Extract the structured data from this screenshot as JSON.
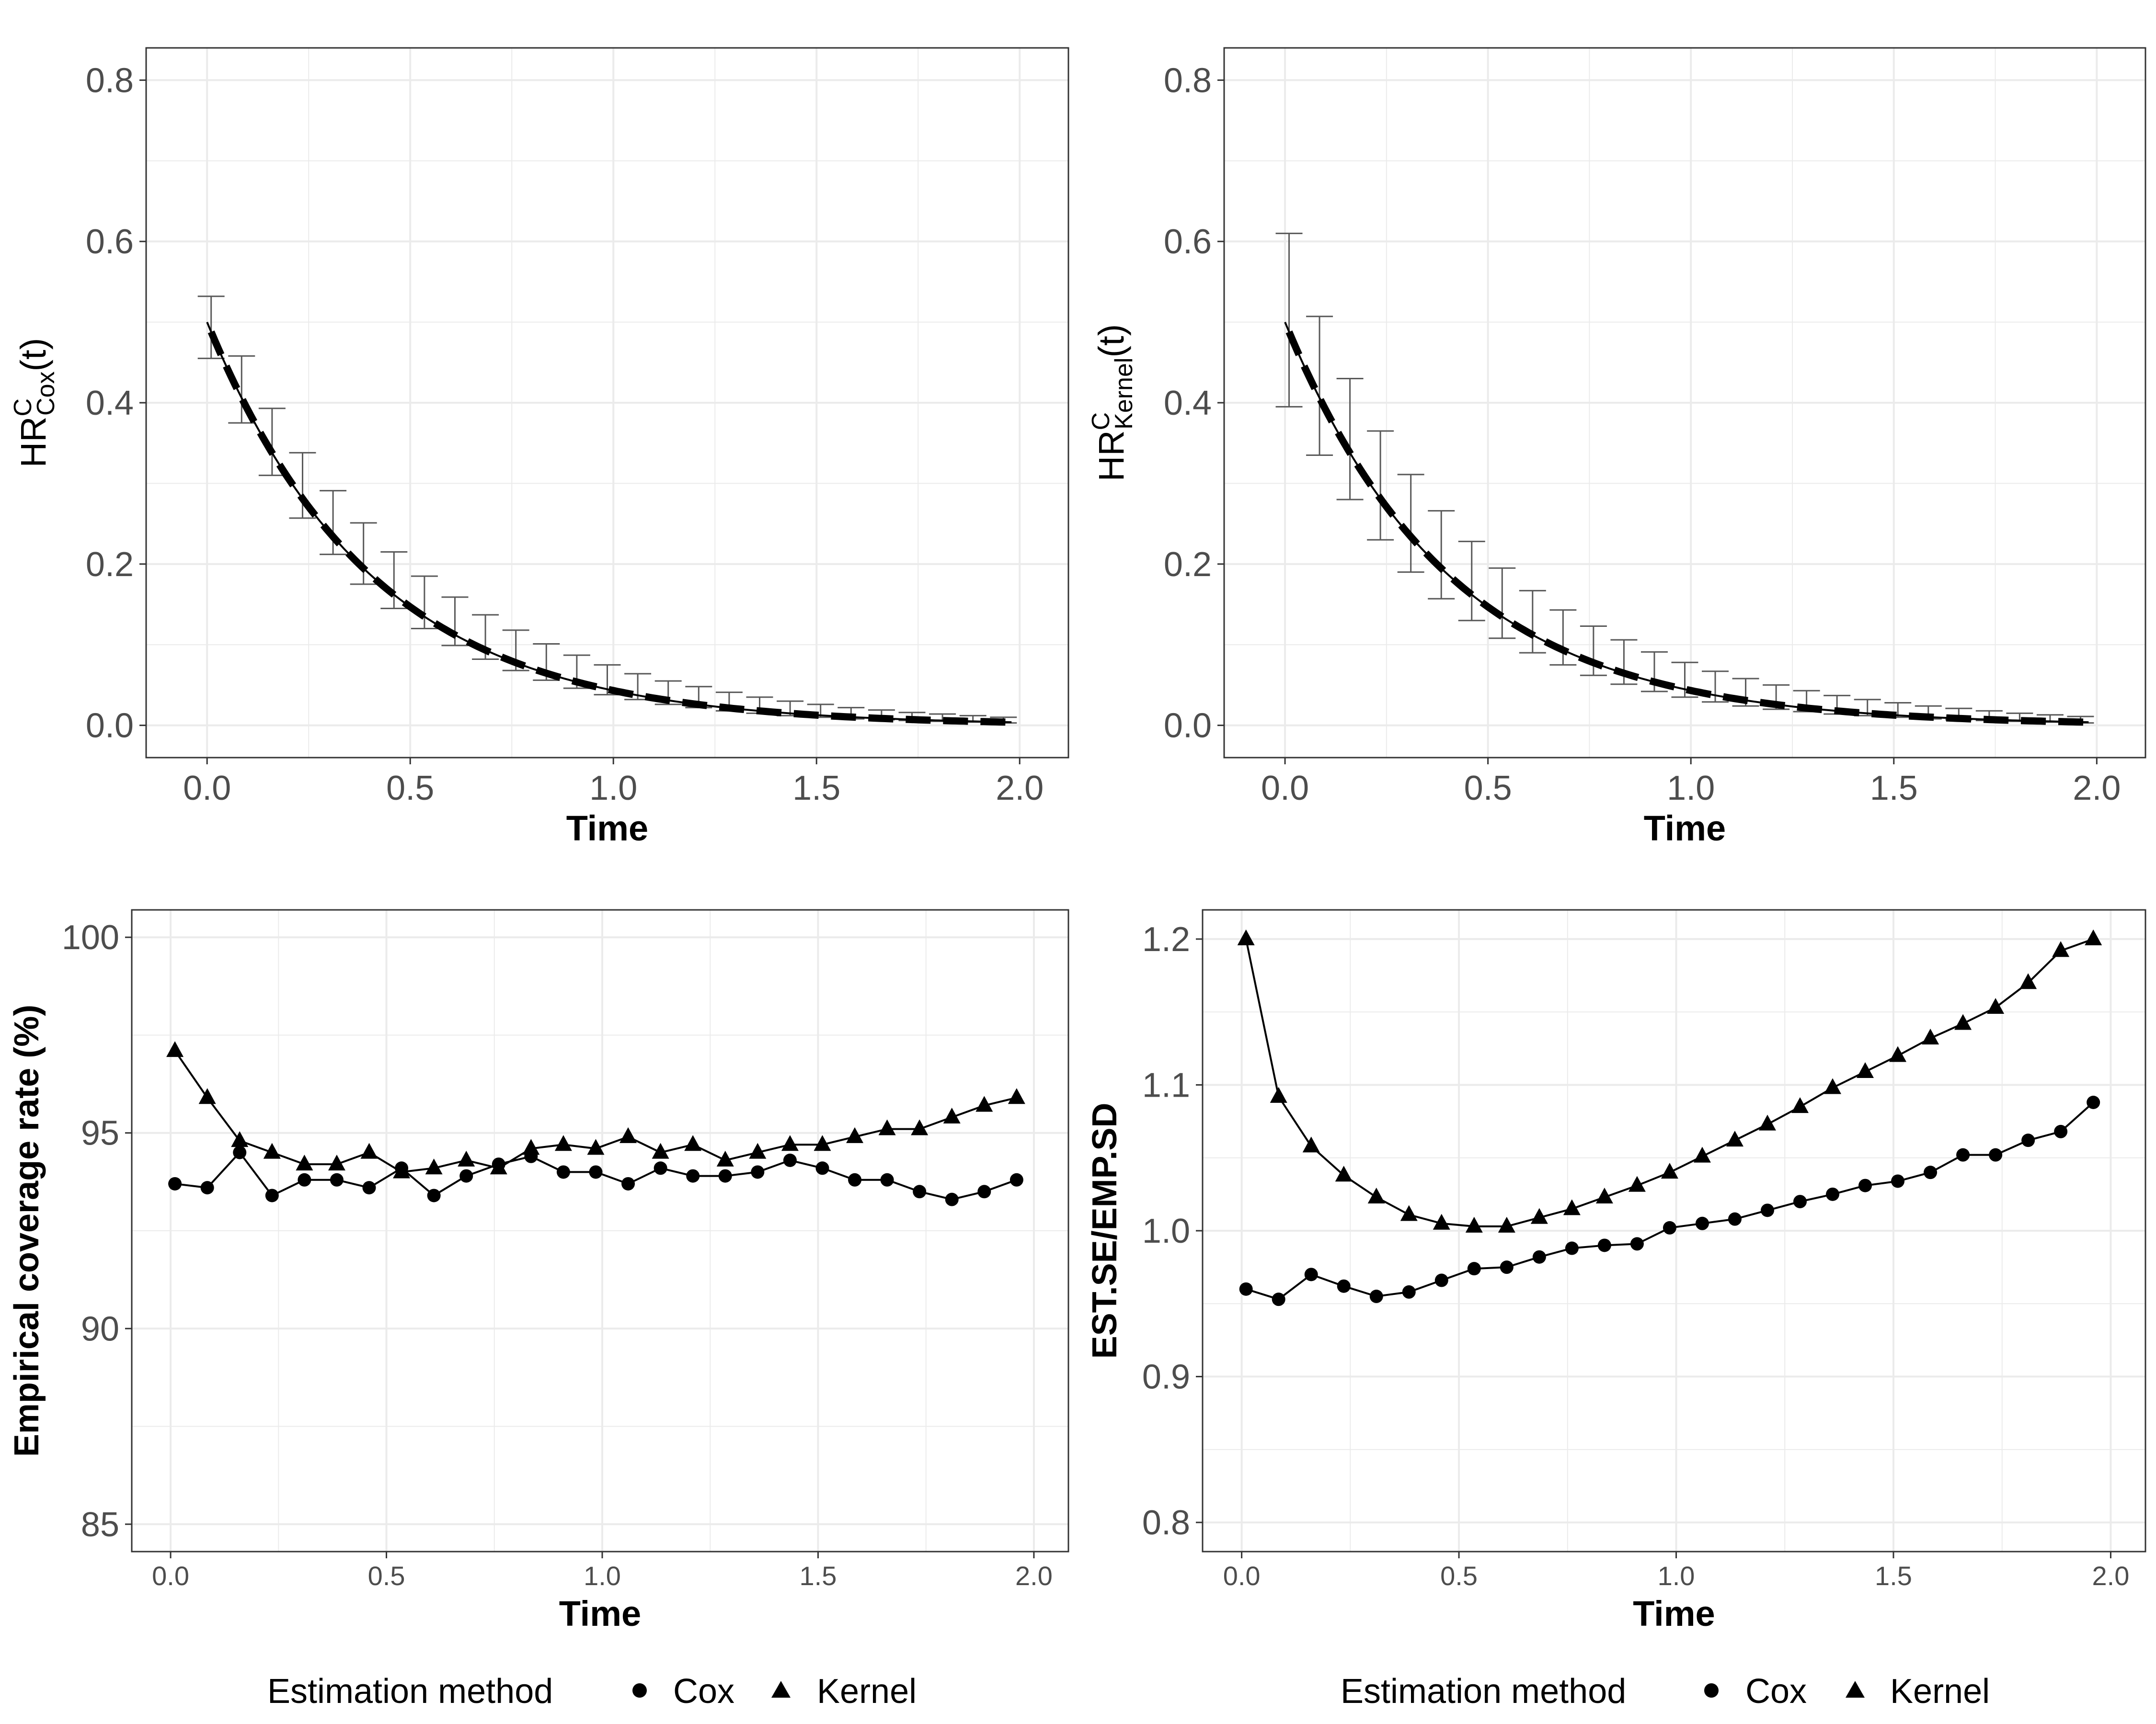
{
  "colors": {
    "line": "#000000",
    "errorbar": "#595959",
    "grid": "#ebebeb",
    "panel_border": "#333333",
    "tick_text": "#4d4d4d"
  },
  "chart_data": [
    {
      "id": "top-left",
      "type": "line",
      "xlabel": "Time",
      "ylabel": {
        "base": "HR",
        "sup": "C",
        "sub": "Cox",
        "suffix": "(t)"
      },
      "xlim": [
        -0.15,
        2.12
      ],
      "ylim": [
        -0.04,
        0.84
      ],
      "xticks": [
        0.0,
        0.5,
        1.0,
        1.5,
        2.0
      ],
      "xtick_labels": [
        "0.0",
        "0.5",
        "1.0",
        "1.5",
        "2.0"
      ],
      "yticks": [
        0.0,
        0.2,
        0.4,
        0.6,
        0.8
      ],
      "ytick_labels": [
        "0.0",
        "0.2",
        "0.4",
        "0.6",
        "0.8"
      ],
      "grid": true,
      "true_curve": {
        "style": "dashed",
        "a": 0.5,
        "b": 2.45,
        "x_range": [
          0.01,
          1.97
        ]
      },
      "estimate_curve": {
        "style": "solid",
        "a": 0.5,
        "b": 2.45,
        "x_range": [
          0.0,
          1.98
        ]
      },
      "errorbars": {
        "x": [
          0.01,
          0.085,
          0.16,
          0.235,
          0.31,
          0.385,
          0.46,
          0.535,
          0.61,
          0.685,
          0.76,
          0.835,
          0.91,
          0.985,
          1.06,
          1.135,
          1.21,
          1.285,
          1.36,
          1.435,
          1.51,
          1.585,
          1.66,
          1.735,
          1.81,
          1.885,
          1.96
        ],
        "lower": [
          0.455,
          0.375,
          0.31,
          0.257,
          0.212,
          0.175,
          0.145,
          0.12,
          0.099,
          0.082,
          0.068,
          0.056,
          0.046,
          0.038,
          0.032,
          0.026,
          0.022,
          0.018,
          0.015,
          0.012,
          0.01,
          0.008,
          0.007,
          0.006,
          0.005,
          0.004,
          0.003
        ],
        "upper": [
          0.532,
          0.458,
          0.393,
          0.338,
          0.291,
          0.251,
          0.215,
          0.185,
          0.159,
          0.137,
          0.118,
          0.101,
          0.087,
          0.075,
          0.064,
          0.055,
          0.048,
          0.041,
          0.035,
          0.03,
          0.026,
          0.022,
          0.019,
          0.016,
          0.014,
          0.012,
          0.01
        ]
      }
    },
    {
      "id": "top-right",
      "type": "line",
      "xlabel": "Time",
      "ylabel": {
        "base": "HR",
        "sup": "C",
        "sub": "Kernel",
        "suffix": "(t)"
      },
      "xlim": [
        -0.15,
        2.12
      ],
      "ylim": [
        -0.04,
        0.84
      ],
      "xticks": [
        0.0,
        0.5,
        1.0,
        1.5,
        2.0
      ],
      "xtick_labels": [
        "0.0",
        "0.5",
        "1.0",
        "1.5",
        "2.0"
      ],
      "yticks": [
        0.0,
        0.2,
        0.4,
        0.6,
        0.8
      ],
      "ytick_labels": [
        "0.0",
        "0.2",
        "0.4",
        "0.6",
        "0.8"
      ],
      "grid": true,
      "true_curve": {
        "style": "dashed",
        "a": 0.5,
        "b": 2.45,
        "x_range": [
          0.01,
          1.97
        ]
      },
      "estimate_curve": {
        "style": "solid",
        "a": 0.5,
        "b": 2.45,
        "x_range": [
          0.0,
          1.98
        ]
      },
      "errorbars": {
        "x": [
          0.01,
          0.085,
          0.16,
          0.235,
          0.31,
          0.385,
          0.46,
          0.535,
          0.61,
          0.685,
          0.76,
          0.835,
          0.91,
          0.985,
          1.06,
          1.135,
          1.21,
          1.285,
          1.36,
          1.435,
          1.51,
          1.585,
          1.66,
          1.735,
          1.81,
          1.885,
          1.96
        ],
        "lower": [
          0.395,
          0.335,
          0.28,
          0.23,
          0.19,
          0.157,
          0.13,
          0.108,
          0.09,
          0.075,
          0.062,
          0.051,
          0.042,
          0.035,
          0.029,
          0.024,
          0.02,
          0.017,
          0.014,
          0.012,
          0.01,
          0.008,
          0.007,
          0.006,
          0.005,
          0.004,
          0.003
        ],
        "upper": [
          0.61,
          0.507,
          0.43,
          0.365,
          0.311,
          0.266,
          0.228,
          0.195,
          0.167,
          0.143,
          0.123,
          0.106,
          0.091,
          0.078,
          0.067,
          0.058,
          0.05,
          0.043,
          0.037,
          0.032,
          0.028,
          0.024,
          0.021,
          0.018,
          0.015,
          0.013,
          0.011
        ]
      }
    },
    {
      "id": "bottom-left",
      "type": "line",
      "xlabel": "Time",
      "ylabel": "Empirical coverage rate (%)",
      "xlim": [
        -0.09,
        2.08
      ],
      "ylim": [
        84.3,
        100.7
      ],
      "xticks": [
        0.0,
        0.5,
        1.0,
        1.5,
        2.0
      ],
      "xtick_labels": [
        "0.0",
        "0.5",
        "1.0",
        "1.5",
        "2.0"
      ],
      "yticks": [
        85,
        90,
        95,
        100
      ],
      "ytick_labels": [
        "85",
        "90",
        "95",
        "100"
      ],
      "grid": true,
      "x": [
        0.01,
        0.085,
        0.16,
        0.235,
        0.31,
        0.385,
        0.46,
        0.535,
        0.61,
        0.685,
        0.76,
        0.835,
        0.91,
        0.985,
        1.06,
        1.135,
        1.21,
        1.285,
        1.36,
        1.435,
        1.51,
        1.585,
        1.66,
        1.735,
        1.81,
        1.885,
        1.96
      ],
      "series": [
        {
          "name": "Cox",
          "marker": "circle",
          "values": [
            93.7,
            93.6,
            94.5,
            93.4,
            93.8,
            93.8,
            93.6,
            94.1,
            93.4,
            93.9,
            94.2,
            94.4,
            94.0,
            94.0,
            93.7,
            94.1,
            93.9,
            93.9,
            94.0,
            94.3,
            94.1,
            93.8,
            93.8,
            93.5,
            93.3,
            93.5,
            93.8
          ]
        },
        {
          "name": "Kernel",
          "marker": "triangle",
          "values": [
            97.1,
            95.9,
            94.8,
            94.5,
            94.2,
            94.2,
            94.5,
            94.0,
            94.1,
            94.3,
            94.1,
            94.6,
            94.7,
            94.6,
            94.9,
            94.5,
            94.7,
            94.3,
            94.5,
            94.7,
            94.7,
            94.9,
            95.1,
            95.1,
            95.4,
            95.7,
            95.9
          ]
        }
      ],
      "legend": {
        "title": "Estimation method",
        "entries": [
          "Cox",
          "Kernel"
        ],
        "position": "bottom"
      }
    },
    {
      "id": "bottom-right",
      "type": "line",
      "xlabel": "Time",
      "ylabel": "EST.SE/EMP.SD",
      "xlim": [
        -0.09,
        2.08
      ],
      "ylim": [
        0.78,
        1.22
      ],
      "xticks": [
        0.0,
        0.5,
        1.0,
        1.5,
        2.0
      ],
      "xtick_labels": [
        "0.0",
        "0.5",
        "1.0",
        "1.5",
        "2.0"
      ],
      "yticks": [
        0.8,
        0.9,
        1.0,
        1.1,
        1.2
      ],
      "ytick_labels": [
        "0.8",
        "0.9",
        "1.0",
        "1.1",
        "1.2"
      ],
      "grid": true,
      "x": [
        0.01,
        0.085,
        0.16,
        0.235,
        0.31,
        0.385,
        0.46,
        0.535,
        0.61,
        0.685,
        0.76,
        0.835,
        0.91,
        0.985,
        1.06,
        1.135,
        1.21,
        1.285,
        1.36,
        1.435,
        1.51,
        1.585,
        1.66,
        1.735,
        1.81,
        1.885,
        1.96
      ],
      "series": [
        {
          "name": "Cox",
          "marker": "circle",
          "values": [
            0.96,
            0.953,
            0.97,
            0.962,
            0.955,
            0.958,
            0.966,
            0.974,
            0.975,
            0.982,
            0.988,
            0.99,
            0.991,
            1.002,
            1.005,
            1.008,
            1.014,
            1.02,
            1.025,
            1.031,
            1.034,
            1.04,
            1.052,
            1.052,
            1.062,
            1.068,
            1.088
          ]
        },
        {
          "name": "Kernel",
          "marker": "triangle",
          "values": [
            1.2,
            1.092,
            1.058,
            1.038,
            1.023,
            1.011,
            1.005,
            1.003,
            1.003,
            1.009,
            1.015,
            1.023,
            1.031,
            1.04,
            1.051,
            1.062,
            1.073,
            1.085,
            1.098,
            1.109,
            1.12,
            1.132,
            1.142,
            1.153,
            1.17,
            1.192,
            1.2
          ]
        }
      ],
      "legend": {
        "title": "Estimation method",
        "entries": [
          "Cox",
          "Kernel"
        ],
        "position": "bottom"
      }
    }
  ],
  "legends": [
    {
      "title": "Estimation method",
      "entries": [
        "Cox",
        "Kernel"
      ]
    },
    {
      "title": "Estimation method",
      "entries": [
        "Cox",
        "Kernel"
      ]
    }
  ]
}
